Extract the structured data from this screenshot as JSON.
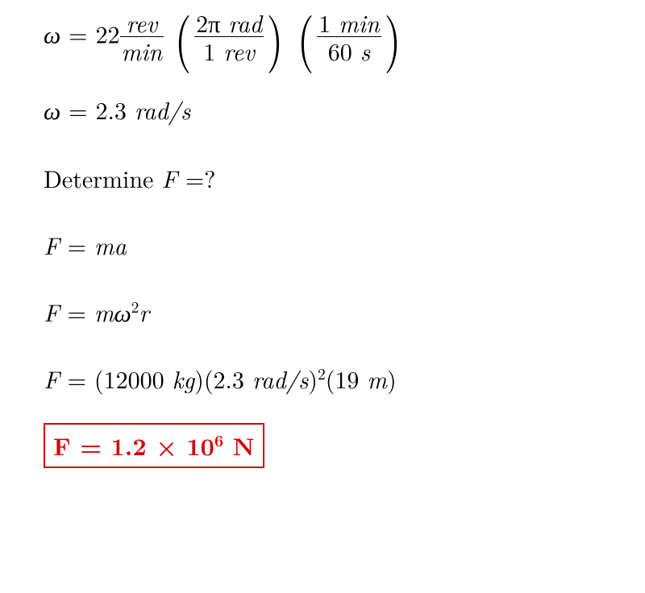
{
  "text_color": "#000000",
  "answer_color": "#d40000",
  "background": "#ffffff",
  "eq1": {
    "omega": "ω",
    "eq": " = ",
    "coeff": "22",
    "f1_num": "rev",
    "f1_den": "min",
    "f2_num_a": "2π ",
    "f2_num_b": "rad",
    "f2_den_a": "1 ",
    "f2_den_b": "rev",
    "f3_num_a": "1 ",
    "f3_num_b": "min",
    "f3_den_a": "60 ",
    "f3_den_b": "s"
  },
  "eq2": {
    "omega": "ω",
    "eq": " = ",
    "val": "2.3 ",
    "unit": "rad/s"
  },
  "question": {
    "pre": "Determine ",
    "F": "F",
    "post": " =?"
  },
  "eq4": {
    "F": "F",
    "eq": " = ",
    "m": "m",
    "a": "a"
  },
  "eq5": {
    "F": "F",
    "eq": " = ",
    "m": "m",
    "omega": "ω",
    "sq": "2",
    "r": "r"
  },
  "eq6": {
    "F": "F",
    "eq": " = ",
    "open": "(",
    "mass": "12000 ",
    "kg": "kg",
    "close": ")",
    "open2": "(",
    "w": "2.3 ",
    "wunit": "rad/s",
    "close2": ")",
    "sq": "2",
    "open3": "(",
    "rad": "19 ",
    "runit": "m",
    "close3": ")"
  },
  "answer": {
    "F": "F",
    "eq": " = ",
    "coeff": "1.2 × 10",
    "exp": "6",
    "sp": " ",
    "unit": "N"
  }
}
